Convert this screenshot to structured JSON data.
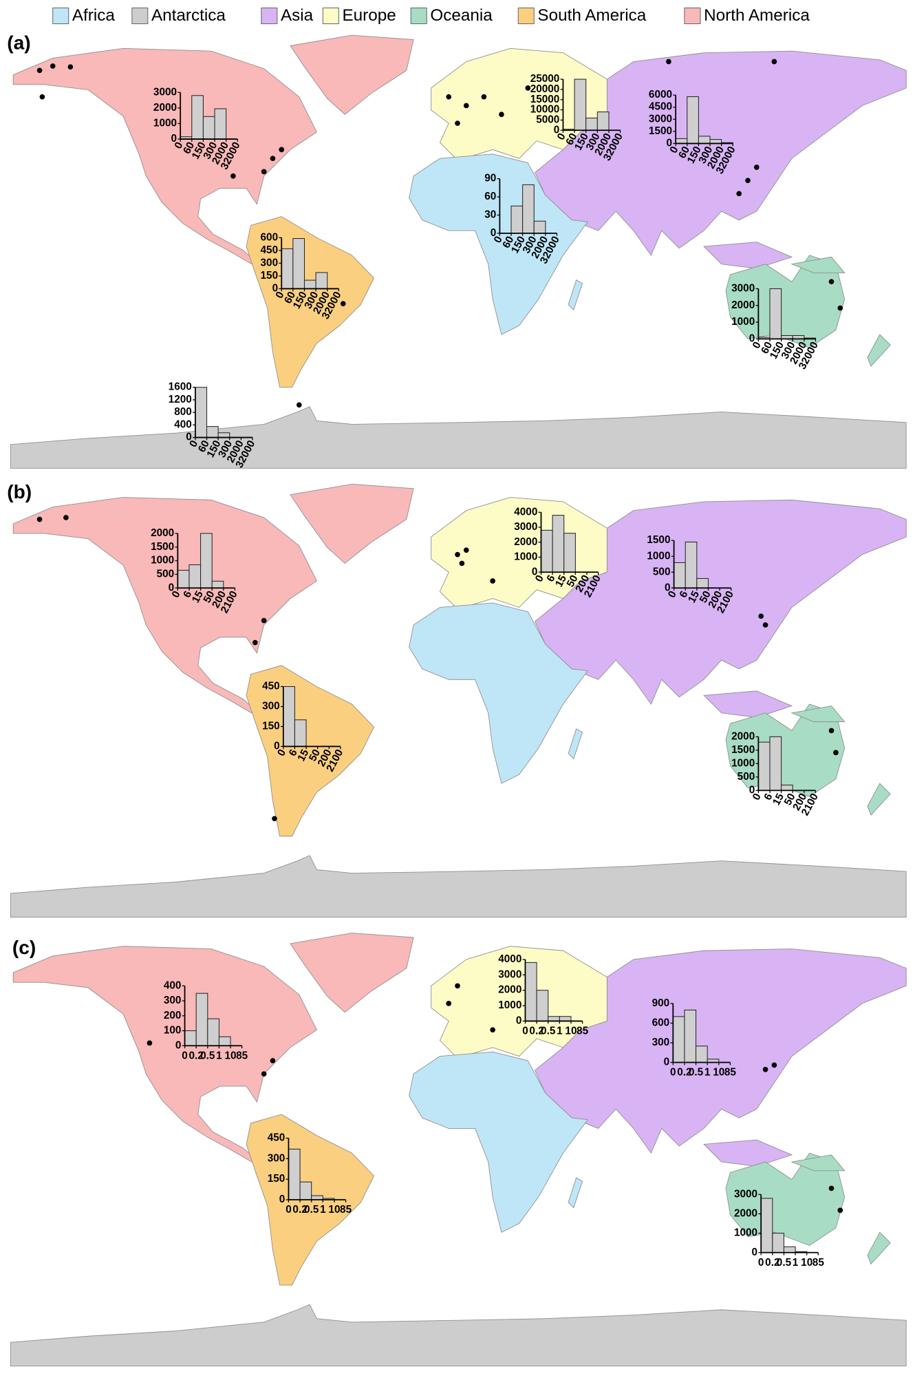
{
  "legend": [
    {
      "name": "Africa",
      "color": "#bfe6f7"
    },
    {
      "name": "Antarctica",
      "color": "#cdcdcd"
    },
    {
      "name": "Asia",
      "color": "#d8b4f4"
    },
    {
      "name": "Europe",
      "color": "#fdfbc6"
    },
    {
      "name": "Oceania",
      "color": "#a8dcc5"
    },
    {
      "name": "South America",
      "color": "#fbcf80"
    },
    {
      "name": "North America",
      "color": "#f8b9b8"
    }
  ],
  "panels": [
    {
      "label": "(a)",
      "insets": [
        {
          "type": "histogram",
          "bins": [
            0,
            60,
            150,
            300,
            2000,
            32000
          ],
          "counts": [
            150,
            2800,
            1450,
            1950,
            0
          ],
          "ylim": [
            0,
            3000
          ],
          "yticks": [
            0,
            1000,
            2000,
            3000
          ]
        },
        {
          "type": "histogram",
          "bins": [
            0,
            60,
            150,
            300,
            2000,
            32000
          ],
          "counts": [
            500,
            25000,
            6000,
            9000,
            0
          ],
          "ylim": [
            0,
            25000
          ],
          "yticks": [
            0,
            5000,
            10000,
            15000,
            20000,
            25000
          ]
        },
        {
          "type": "histogram",
          "bins": [
            0,
            60,
            150,
            300,
            2000,
            32000
          ],
          "counts": [
            600,
            5800,
            900,
            500,
            100
          ],
          "ylim": [
            0,
            6000
          ],
          "yticks": [
            0,
            1500,
            3000,
            4500,
            6000
          ]
        },
        {
          "type": "histogram",
          "bins": [
            0,
            60,
            150,
            300,
            2000,
            32000
          ],
          "counts": [
            0,
            45,
            80,
            20,
            0
          ],
          "ylim": [
            0,
            90
          ],
          "yticks": [
            0,
            30,
            60,
            90
          ]
        },
        {
          "type": "histogram",
          "bins": [
            0,
            60,
            150,
            300,
            2000,
            32000
          ],
          "counts": [
            470,
            590,
            100,
            190,
            0
          ],
          "ylim": [
            0,
            600
          ],
          "yticks": [
            0,
            150,
            300,
            450,
            600
          ]
        },
        {
          "type": "histogram",
          "bins": [
            0,
            60,
            150,
            300,
            2000,
            32000
          ],
          "counts": [
            100,
            3000,
            200,
            200,
            50
          ],
          "ylim": [
            0,
            3000
          ],
          "yticks": [
            0,
            1000,
            2000,
            3000
          ]
        },
        {
          "type": "histogram",
          "bins": [
            0,
            60,
            150,
            300,
            2000,
            32000
          ],
          "counts": [
            1600,
            350,
            150,
            0,
            0
          ],
          "ylim": [
            0,
            1600
          ],
          "yticks": [
            0,
            400,
            800,
            1200,
            1600
          ]
        }
      ]
    },
    {
      "label": "(b)",
      "insets": [
        {
          "type": "histogram",
          "bins": [
            0,
            6,
            15,
            50,
            200,
            2100
          ],
          "counts": [
            650,
            850,
            2000,
            250,
            0
          ],
          "ylim": [
            0,
            2000
          ],
          "yticks": [
            0,
            500,
            1000,
            1500,
            2000
          ]
        },
        {
          "type": "histogram",
          "bins": [
            0,
            6,
            15,
            50,
            200,
            2100
          ],
          "counts": [
            2800,
            3800,
            2600,
            0,
            0
          ],
          "ylim": [
            0,
            4000
          ],
          "yticks": [
            0,
            1000,
            2000,
            3000,
            4000
          ]
        },
        {
          "type": "histogram",
          "bins": [
            0,
            6,
            15,
            50,
            200,
            2100
          ],
          "counts": [
            800,
            1450,
            300,
            0,
            0
          ],
          "ylim": [
            0,
            1500
          ],
          "yticks": [
            0,
            500,
            1000,
            1500
          ]
        },
        {
          "type": "histogram",
          "bins": [
            0,
            6,
            15,
            50,
            200,
            2100
          ],
          "counts": [
            450,
            200,
            0,
            0,
            0
          ],
          "ylim": [
            0,
            450
          ],
          "yticks": [
            0,
            150,
            300,
            450
          ]
        },
        {
          "type": "histogram",
          "bins": [
            0,
            6,
            15,
            50,
            200,
            2100
          ],
          "counts": [
            1800,
            2000,
            200,
            0,
            0
          ],
          "ylim": [
            0,
            2000
          ],
          "yticks": [
            0,
            500,
            1000,
            1500,
            2000
          ]
        }
      ]
    },
    {
      "label": "(c)",
      "insets": [
        {
          "type": "histogram",
          "bins": [
            0,
            0.2,
            0.5,
            1,
            10,
            85
          ],
          "counts": [
            100,
            350,
            180,
            60,
            0
          ],
          "ylim": [
            0,
            400
          ],
          "yticks": [
            0,
            100,
            200,
            300,
            400
          ]
        },
        {
          "type": "histogram",
          "bins": [
            0,
            0.2,
            0.5,
            1,
            10,
            85
          ],
          "counts": [
            3800,
            2000,
            300,
            300,
            0
          ],
          "ylim": [
            0,
            4000
          ],
          "yticks": [
            0,
            1000,
            2000,
            3000,
            4000
          ]
        },
        {
          "type": "histogram",
          "bins": [
            0,
            0.2,
            0.5,
            1,
            10,
            85
          ],
          "counts": [
            700,
            800,
            250,
            50,
            0
          ],
          "ylim": [
            0,
            900
          ],
          "yticks": [
            0,
            300,
            600,
            900
          ]
        },
        {
          "type": "histogram",
          "bins": [
            0,
            0.2,
            0.5,
            1,
            10,
            85
          ],
          "counts": [
            370,
            130,
            30,
            10,
            0
          ],
          "ylim": [
            0,
            450
          ],
          "yticks": [
            0,
            150,
            300,
            450
          ]
        },
        {
          "type": "histogram",
          "bins": [
            0,
            0.2,
            0.5,
            1,
            10,
            85
          ],
          "counts": [
            2800,
            1000,
            300,
            50,
            0
          ],
          "ylim": [
            0,
            3000
          ],
          "yticks": [
            0,
            1000,
            2000,
            3000
          ]
        }
      ]
    }
  ]
}
